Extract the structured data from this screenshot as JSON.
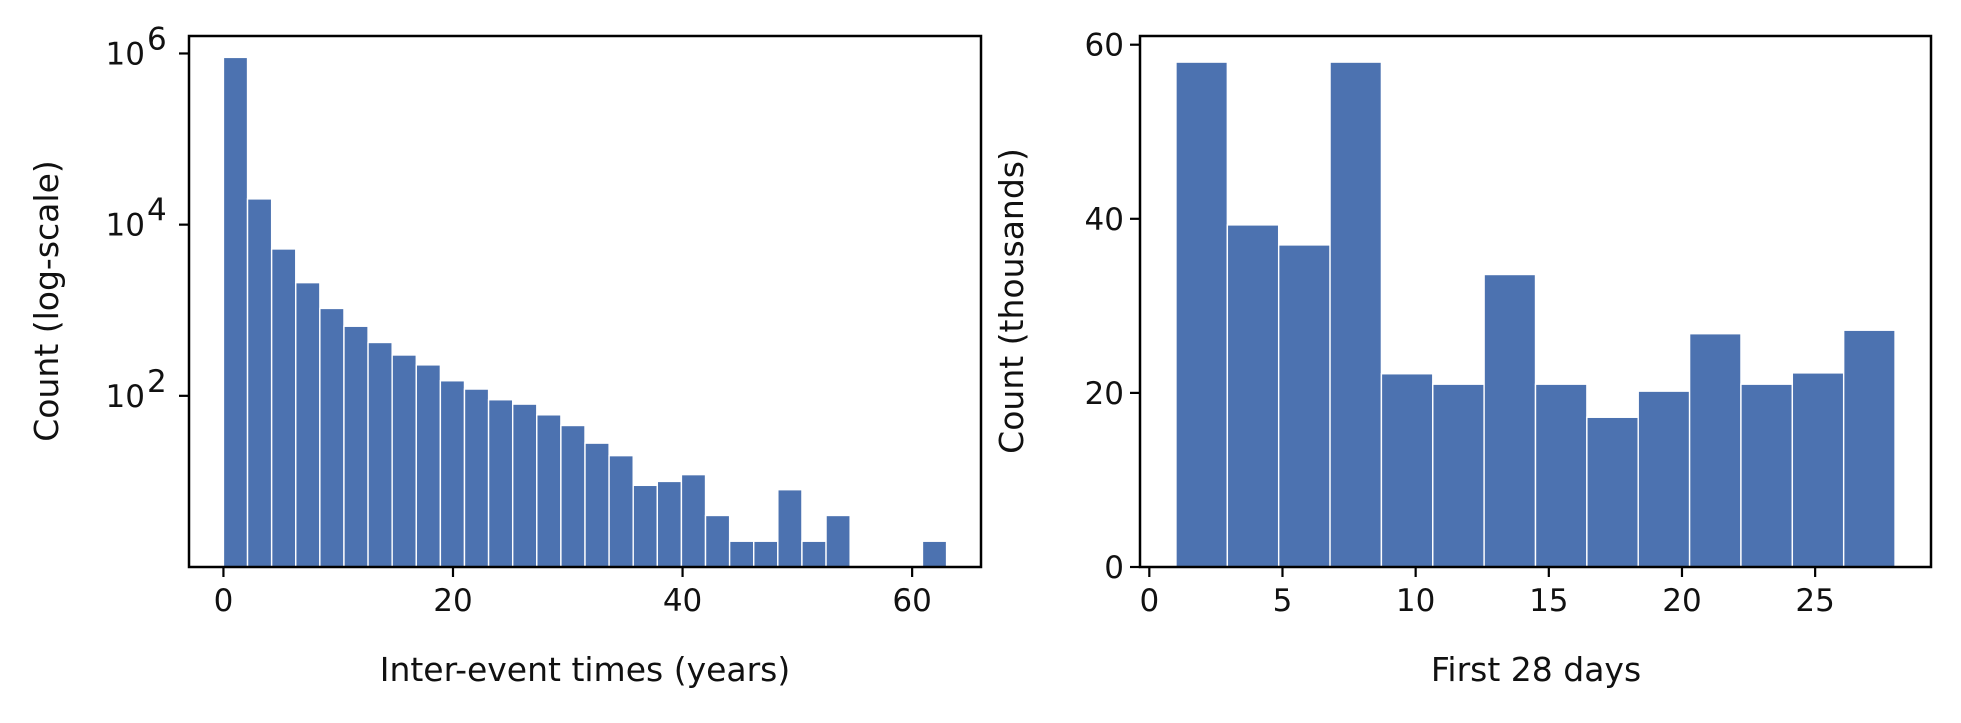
{
  "chart_data": [
    {
      "type": "bar",
      "subtype": "histogram",
      "xlabel": "Inter-event times (years)",
      "ylabel": "Count (log-scale)",
      "y_scale": "log",
      "xlim": [
        -3,
        66
      ],
      "ylim": [
        1,
        1600000
      ],
      "xticks": [
        0,
        20,
        40,
        60
      ],
      "yticks": [
        {
          "value": 100,
          "base": "10",
          "exp": "2"
        },
        {
          "value": 10000,
          "base": "10",
          "exp": "4"
        },
        {
          "value": 1000000,
          "base": "10",
          "exp": "6"
        }
      ],
      "bar_color": "#4c72b0",
      "bins": [
        {
          "x0": 0,
          "x1": 2.1,
          "value": 900000
        },
        {
          "x0": 2.1,
          "x1": 4.2,
          "value": 20000
        },
        {
          "x0": 4.2,
          "x1": 6.3,
          "value": 5200
        },
        {
          "x0": 6.3,
          "x1": 8.4,
          "value": 2100
        },
        {
          "x0": 8.4,
          "x1": 10.5,
          "value": 1050
        },
        {
          "x0": 10.5,
          "x1": 12.6,
          "value": 650
        },
        {
          "x0": 12.6,
          "x1": 14.7,
          "value": 420
        },
        {
          "x0": 14.7,
          "x1": 16.8,
          "value": 300
        },
        {
          "x0": 16.8,
          "x1": 18.9,
          "value": 230
        },
        {
          "x0": 18.9,
          "x1": 21.0,
          "value": 150
        },
        {
          "x0": 21.0,
          "x1": 23.1,
          "value": 120
        },
        {
          "x0": 23.1,
          "x1": 25.2,
          "value": 90
        },
        {
          "x0": 25.2,
          "x1": 27.3,
          "value": 80
        },
        {
          "x0": 27.3,
          "x1": 29.4,
          "value": 60
        },
        {
          "x0": 29.4,
          "x1": 31.5,
          "value": 45
        },
        {
          "x0": 31.5,
          "x1": 33.6,
          "value": 28
        },
        {
          "x0": 33.6,
          "x1": 35.7,
          "value": 20
        },
        {
          "x0": 35.7,
          "x1": 37.8,
          "value": 9
        },
        {
          "x0": 37.8,
          "x1": 39.9,
          "value": 10
        },
        {
          "x0": 39.9,
          "x1": 42.0,
          "value": 12
        },
        {
          "x0": 42.0,
          "x1": 44.1,
          "value": 4
        },
        {
          "x0": 44.1,
          "x1": 46.2,
          "value": 2
        },
        {
          "x0": 46.2,
          "x1": 48.3,
          "value": 2
        },
        {
          "x0": 48.3,
          "x1": 50.4,
          "value": 8
        },
        {
          "x0": 50.4,
          "x1": 52.5,
          "value": 2
        },
        {
          "x0": 52.5,
          "x1": 54.6,
          "value": 4
        },
        {
          "x0": 60.9,
          "x1": 63.0,
          "value": 2
        }
      ]
    },
    {
      "type": "bar",
      "subtype": "histogram",
      "xlabel": "First 28 days",
      "ylabel": "Count (thousands)",
      "y_scale": "linear",
      "xlim": [
        -0.35,
        29.35
      ],
      "ylim": [
        0,
        61
      ],
      "xticks": [
        0,
        5,
        10,
        15,
        20,
        25
      ],
      "yticks": [
        0,
        20,
        40,
        60
      ],
      "bar_color": "#4c72b0",
      "bins": [
        {
          "x0": 1.0,
          "x1": 2.929,
          "value": 58
        },
        {
          "x0": 2.929,
          "x1": 4.857,
          "value": 39.3
        },
        {
          "x0": 4.857,
          "x1": 6.786,
          "value": 37
        },
        {
          "x0": 6.786,
          "x1": 8.714,
          "value": 58
        },
        {
          "x0": 8.714,
          "x1": 10.643,
          "value": 22.2
        },
        {
          "x0": 10.643,
          "x1": 12.571,
          "value": 21
        },
        {
          "x0": 12.571,
          "x1": 14.5,
          "value": 33.6
        },
        {
          "x0": 14.5,
          "x1": 16.429,
          "value": 21
        },
        {
          "x0": 16.429,
          "x1": 18.357,
          "value": 17.2
        },
        {
          "x0": 18.357,
          "x1": 20.286,
          "value": 20.2
        },
        {
          "x0": 20.286,
          "x1": 22.214,
          "value": 26.8
        },
        {
          "x0": 22.214,
          "x1": 24.143,
          "value": 21
        },
        {
          "x0": 24.143,
          "x1": 26.071,
          "value": 22.3
        },
        {
          "x0": 26.071,
          "x1": 28.0,
          "value": 27.2
        }
      ]
    }
  ]
}
